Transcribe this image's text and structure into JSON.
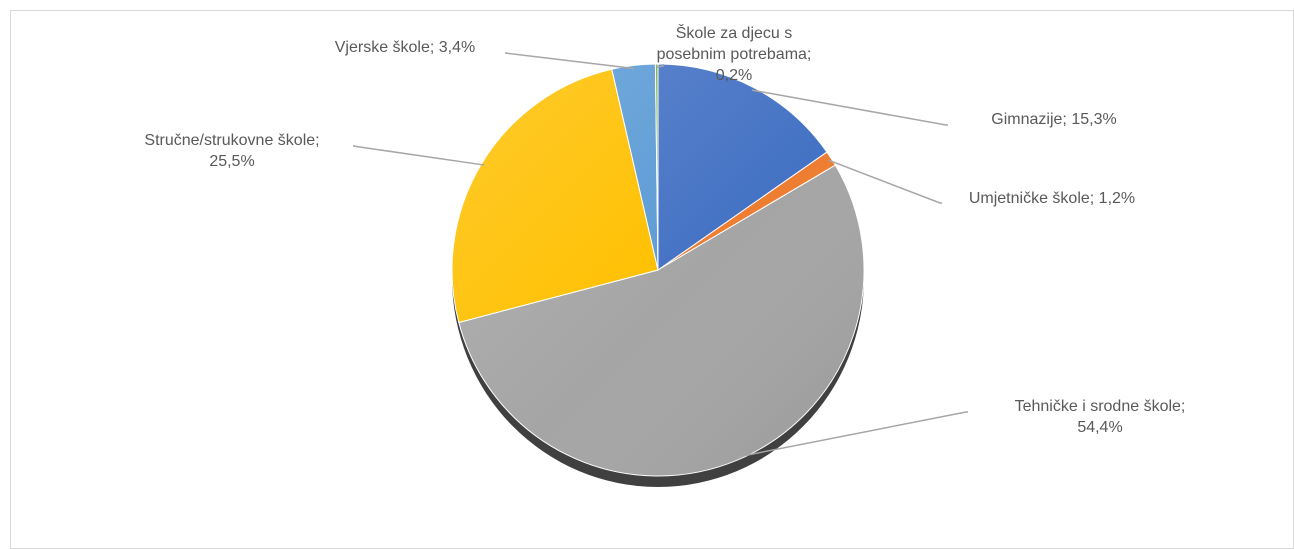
{
  "chart_data": {
    "type": "pie",
    "title": "",
    "slices": [
      {
        "name": "Gimnazije",
        "value": 15.3,
        "label_lines": [
          "Gimnazije;  15,3%"
        ],
        "color": "#4472C4"
      },
      {
        "name": "Umjetničke škole",
        "value": 1.2,
        "label_lines": [
          "Umjetničke  škole; 1,2%"
        ],
        "color": "#ED7D31"
      },
      {
        "name": "Tehničke i srodne škole",
        "value": 54.4,
        "label_lines": [
          "Tehničke  i  srodne škole;",
          "54,4%"
        ],
        "color": "#A5A5A5"
      },
      {
        "name": "Stručne/strukovne škole",
        "value": 25.5,
        "label_lines": [
          "Stručne/strukovne  škole;",
          "25,5%"
        ],
        "color": "#FFC000"
      },
      {
        "name": "Vjerske škole",
        "value": 3.4,
        "label_lines": [
          "Vjerske škole;  3,4%"
        ],
        "color": "#5B9BD5"
      },
      {
        "name": "Škole za djecu s posebnim potrebama",
        "value": 0.2,
        "label_lines": [
          "Škole za djecu s",
          "posebnim  potrebama;",
          "0,2%"
        ],
        "color": "#70AD47"
      }
    ],
    "legend": "none",
    "start_angle": "12 o'clock, clockwise"
  },
  "colors": {
    "border": "#D9D9D9",
    "leader_line": "#A6A6A6",
    "label_text": "#595959"
  }
}
